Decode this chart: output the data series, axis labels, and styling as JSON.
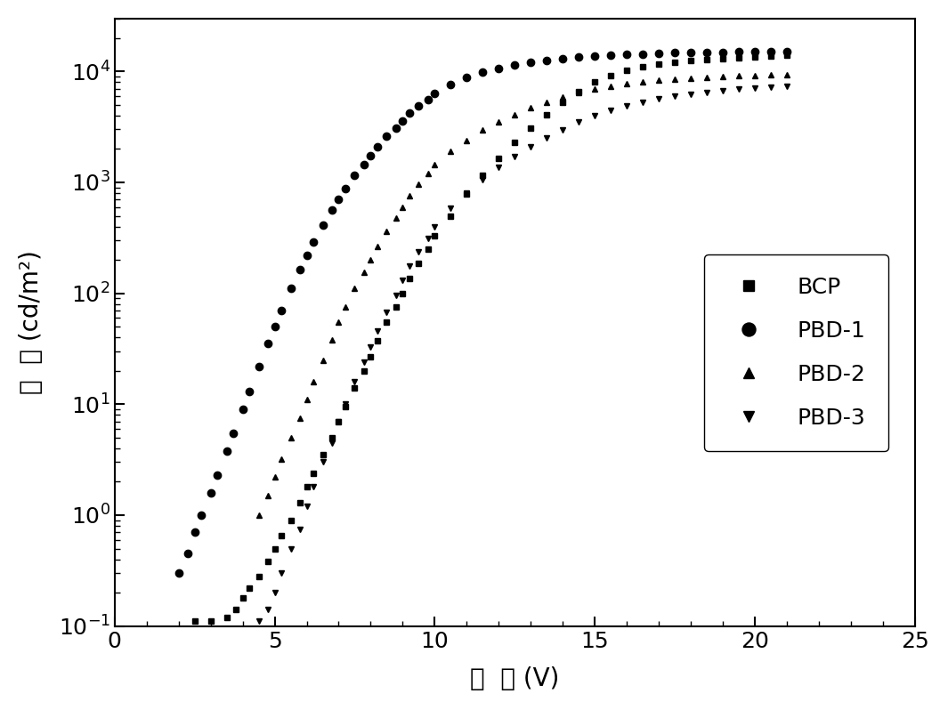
{
  "title": "",
  "xlabel": "电  压 (V)",
  "ylabel": "亮  度 (cd/m²)",
  "xlim": [
    0,
    25
  ],
  "ylim": [
    0.1,
    30000
  ],
  "legend_labels": [
    "BCP",
    "PBD-1",
    "PBD-2",
    "PBD-3"
  ],
  "background_color": "#ffffff",
  "BCP": {
    "x": [
      2.5,
      3.0,
      3.5,
      3.8,
      4.0,
      4.2,
      4.5,
      4.8,
      5.0,
      5.2,
      5.5,
      5.8,
      6.0,
      6.2,
      6.5,
      6.8,
      7.0,
      7.2,
      7.5,
      7.8,
      8.0,
      8.2,
      8.5,
      8.8,
      9.0,
      9.2,
      9.5,
      9.8,
      10.0,
      10.5,
      11.0,
      11.5,
      12.0,
      12.5,
      13.0,
      13.5,
      14.0,
      14.5,
      15.0,
      15.5,
      16.0,
      16.5,
      17.0,
      17.5,
      18.0,
      18.5,
      19.0,
      19.5,
      20.0,
      20.5,
      21.0
    ],
    "y": [
      0.11,
      0.11,
      0.12,
      0.14,
      0.18,
      0.22,
      0.28,
      0.38,
      0.5,
      0.65,
      0.9,
      1.3,
      1.8,
      2.4,
      3.5,
      5.0,
      7.0,
      9.5,
      14,
      20,
      27,
      37,
      55,
      75,
      100,
      135,
      185,
      250,
      330,
      500,
      780,
      1150,
      1650,
      2300,
      3100,
      4100,
      5300,
      6600,
      8000,
      9200,
      10200,
      11000,
      11700,
      12200,
      12600,
      12900,
      13100,
      13300,
      13500,
      13700,
      13900
    ]
  },
  "PBD1": {
    "x": [
      2.0,
      2.3,
      2.5,
      2.7,
      3.0,
      3.2,
      3.5,
      3.7,
      4.0,
      4.2,
      4.5,
      4.8,
      5.0,
      5.2,
      5.5,
      5.8,
      6.0,
      6.2,
      6.5,
      6.8,
      7.0,
      7.2,
      7.5,
      7.8,
      8.0,
      8.2,
      8.5,
      8.8,
      9.0,
      9.2,
      9.5,
      9.8,
      10.0,
      10.5,
      11.0,
      11.5,
      12.0,
      12.5,
      13.0,
      13.5,
      14.0,
      14.5,
      15.0,
      15.5,
      16.0,
      16.5,
      17.0,
      17.5,
      18.0,
      18.5,
      19.0,
      19.5,
      20.0,
      20.5,
      21.0
    ],
    "y": [
      0.3,
      0.45,
      0.7,
      1.0,
      1.6,
      2.3,
      3.8,
      5.5,
      9.0,
      13,
      22,
      35,
      50,
      70,
      110,
      165,
      220,
      290,
      410,
      560,
      700,
      880,
      1150,
      1450,
      1750,
      2100,
      2600,
      3100,
      3600,
      4200,
      4900,
      5600,
      6300,
      7600,
      8800,
      9800,
      10700,
      11400,
      12000,
      12500,
      13000,
      13400,
      13700,
      14000,
      14200,
      14400,
      14550,
      14700,
      14800,
      14900,
      14950,
      15000,
      15050,
      15100,
      15150
    ]
  },
  "PBD2": {
    "x": [
      4.5,
      4.8,
      5.0,
      5.2,
      5.5,
      5.8,
      6.0,
      6.2,
      6.5,
      6.8,
      7.0,
      7.2,
      7.5,
      7.8,
      8.0,
      8.2,
      8.5,
      8.8,
      9.0,
      9.2,
      9.5,
      9.8,
      10.0,
      10.5,
      11.0,
      11.5,
      12.0,
      12.5,
      13.0,
      13.5,
      14.0,
      14.5,
      15.0,
      15.5,
      16.0,
      16.5,
      17.0,
      17.5,
      18.0,
      18.5,
      19.0,
      19.5,
      20.0,
      20.5,
      21.0
    ],
    "y": [
      1.0,
      1.5,
      2.2,
      3.2,
      5.0,
      7.5,
      11,
      16,
      25,
      38,
      55,
      75,
      110,
      155,
      200,
      265,
      360,
      480,
      600,
      760,
      960,
      1200,
      1450,
      1900,
      2400,
      2950,
      3500,
      4100,
      4700,
      5300,
      5900,
      6400,
      6900,
      7300,
      7700,
      8000,
      8300,
      8500,
      8700,
      8900,
      9000,
      9100,
      9200,
      9300,
      9400
    ]
  },
  "PBD3": {
    "x": [
      4.5,
      4.8,
      5.0,
      5.2,
      5.5,
      5.8,
      6.0,
      6.2,
      6.5,
      6.8,
      7.0,
      7.2,
      7.5,
      7.8,
      8.0,
      8.2,
      8.5,
      8.8,
      9.0,
      9.2,
      9.5,
      9.8,
      10.0,
      10.5,
      11.0,
      11.5,
      12.0,
      12.5,
      13.0,
      13.5,
      14.0,
      14.5,
      15.0,
      15.5,
      16.0,
      16.5,
      17.0,
      17.5,
      18.0,
      18.5,
      19.0,
      19.5,
      20.0,
      20.5,
      21.0
    ],
    "y": [
      0.11,
      0.14,
      0.2,
      0.3,
      0.5,
      0.75,
      1.2,
      1.8,
      3.0,
      4.5,
      7.0,
      10,
      16,
      24,
      33,
      46,
      68,
      96,
      130,
      175,
      235,
      310,
      400,
      580,
      800,
      1060,
      1370,
      1720,
      2100,
      2520,
      2980,
      3480,
      3980,
      4450,
      4900,
      5300,
      5680,
      5980,
      6260,
      6500,
      6720,
      6900,
      7050,
      7180,
      7300
    ]
  }
}
